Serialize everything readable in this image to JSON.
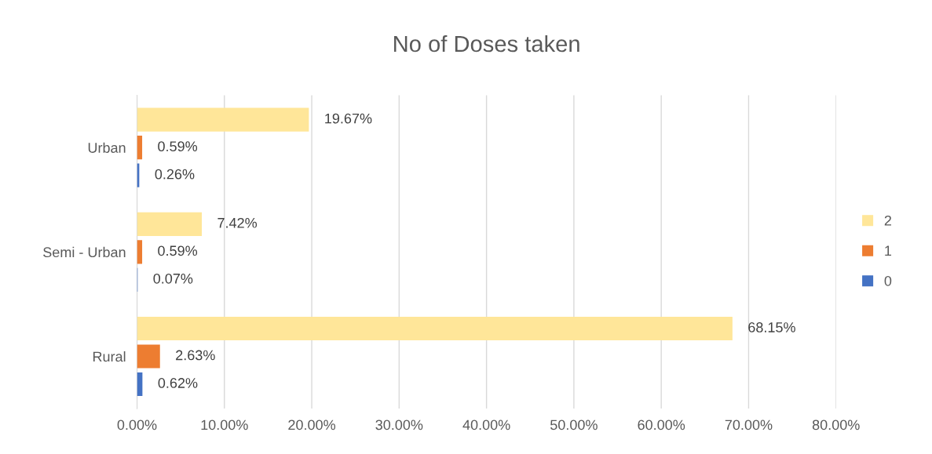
{
  "chart_data": {
    "type": "bar",
    "orientation": "horizontal",
    "title": "No of Doses taken",
    "categories": [
      "Urban",
      "Semi - Urban",
      "Rural"
    ],
    "series": [
      {
        "name": "2",
        "color": "#ffe699",
        "values": [
          19.67,
          7.42,
          68.15
        ],
        "value_labels": [
          "19.67%",
          "7.42%",
          "68.15%"
        ]
      },
      {
        "name": "1",
        "color": "#ed7d31",
        "values": [
          0.59,
          0.59,
          2.63
        ],
        "value_labels": [
          "0.59%",
          "0.59%",
          "2.63%"
        ]
      },
      {
        "name": "0",
        "color": "#4472c4",
        "values": [
          0.26,
          0.07,
          0.62
        ],
        "value_labels": [
          "0.26%",
          "0.07%",
          "0.62%"
        ]
      }
    ],
    "xlim": [
      0,
      80
    ],
    "xticks": [
      {
        "value": 0,
        "label": "0.00%"
      },
      {
        "value": 10,
        "label": "10.00%"
      },
      {
        "value": 20,
        "label": "20.00%"
      },
      {
        "value": 30,
        "label": "30.00%"
      },
      {
        "value": 40,
        "label": "40.00%"
      },
      {
        "value": 50,
        "label": "50.00%"
      },
      {
        "value": 60,
        "label": "60.00%"
      },
      {
        "value": 70,
        "label": "70.00%"
      },
      {
        "value": 80,
        "label": "80.00%"
      }
    ],
    "grid": "x",
    "legend": "right"
  }
}
